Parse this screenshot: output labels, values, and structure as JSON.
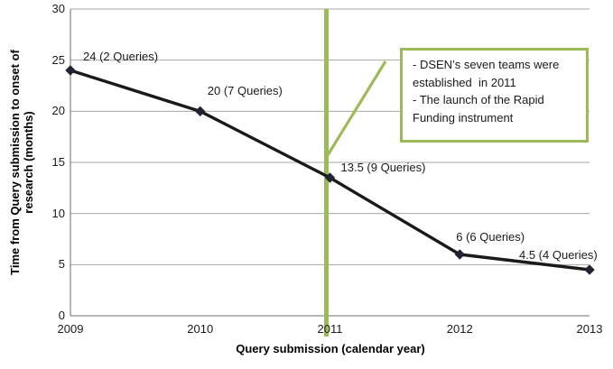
{
  "chart_data": {
    "type": "line",
    "categories": [
      "2009",
      "2010",
      "2011",
      "2012",
      "2013"
    ],
    "series": [
      {
        "name": "Time from Query submission to onset of research",
        "values": [
          24,
          20,
          13.5,
          6,
          4.5
        ]
      }
    ],
    "point_labels": [
      "24 (2 Queries)",
      "20 (7 Queries)",
      "13.5 (9 Queries)",
      "6 (6 Queries)",
      "4.5 (4 Queries)"
    ],
    "xlabel": "Query submission (calendar year)",
    "ylabel": "Time from Query submission to onset of\nresearch (months)",
    "ylim": [
      0,
      30
    ],
    "ytick_step": 5,
    "yticks": [
      0,
      5,
      10,
      15,
      20,
      25,
      30
    ],
    "grid": "horizontal",
    "legend": "none",
    "event_line": {
      "x_category": "2011"
    },
    "annotation": {
      "lines": [
        "- DSEN’s seven teams were established  in 2011",
        "- The launch of the Rapid Funding instrument"
      ]
    },
    "colors": {
      "series": "#1a1a1a",
      "marker": "#1f2533",
      "event_line": "#9BBB59",
      "gridline": "#a6a6a6",
      "axis": "#8c8c8c"
    }
  }
}
